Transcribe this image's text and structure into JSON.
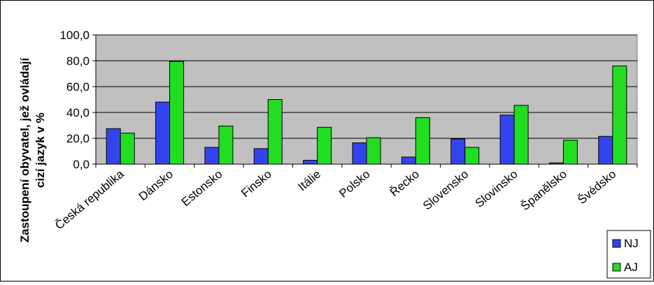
{
  "chart_data": {
    "type": "bar",
    "title": "",
    "xlabel": "",
    "ylabel_lines": [
      "Zastoupení obyvatel, jež ovládají",
      "cizí jazyk  v %"
    ],
    "categories": [
      "Česká republika",
      "Dánsko",
      "Estonsko",
      "Finsko",
      "Itálie",
      "Polsko",
      "Řecko",
      "Slovensko",
      "Slovinsko",
      "Španělsko",
      "Švédsko"
    ],
    "series": [
      {
        "name": "NJ",
        "color": "#3344ee",
        "values": [
          27.5,
          48.0,
          13.0,
          12.0,
          3.0,
          16.5,
          5.5,
          19.5,
          38.0,
          1.0,
          21.5
        ]
      },
      {
        "name": "AJ",
        "color": "#22dd22",
        "values": [
          24.0,
          79.5,
          29.5,
          50.0,
          28.5,
          20.5,
          36.0,
          13.0,
          45.5,
          18.5,
          76.0
        ]
      }
    ],
    "ylim": [
      0,
      100
    ],
    "yticks": [
      "0,0",
      "20,0",
      "40,0",
      "60,0",
      "80,0",
      "100,0"
    ],
    "grid": true,
    "plot_background": "#c0c0c0",
    "legend_position": "bottom-right"
  }
}
